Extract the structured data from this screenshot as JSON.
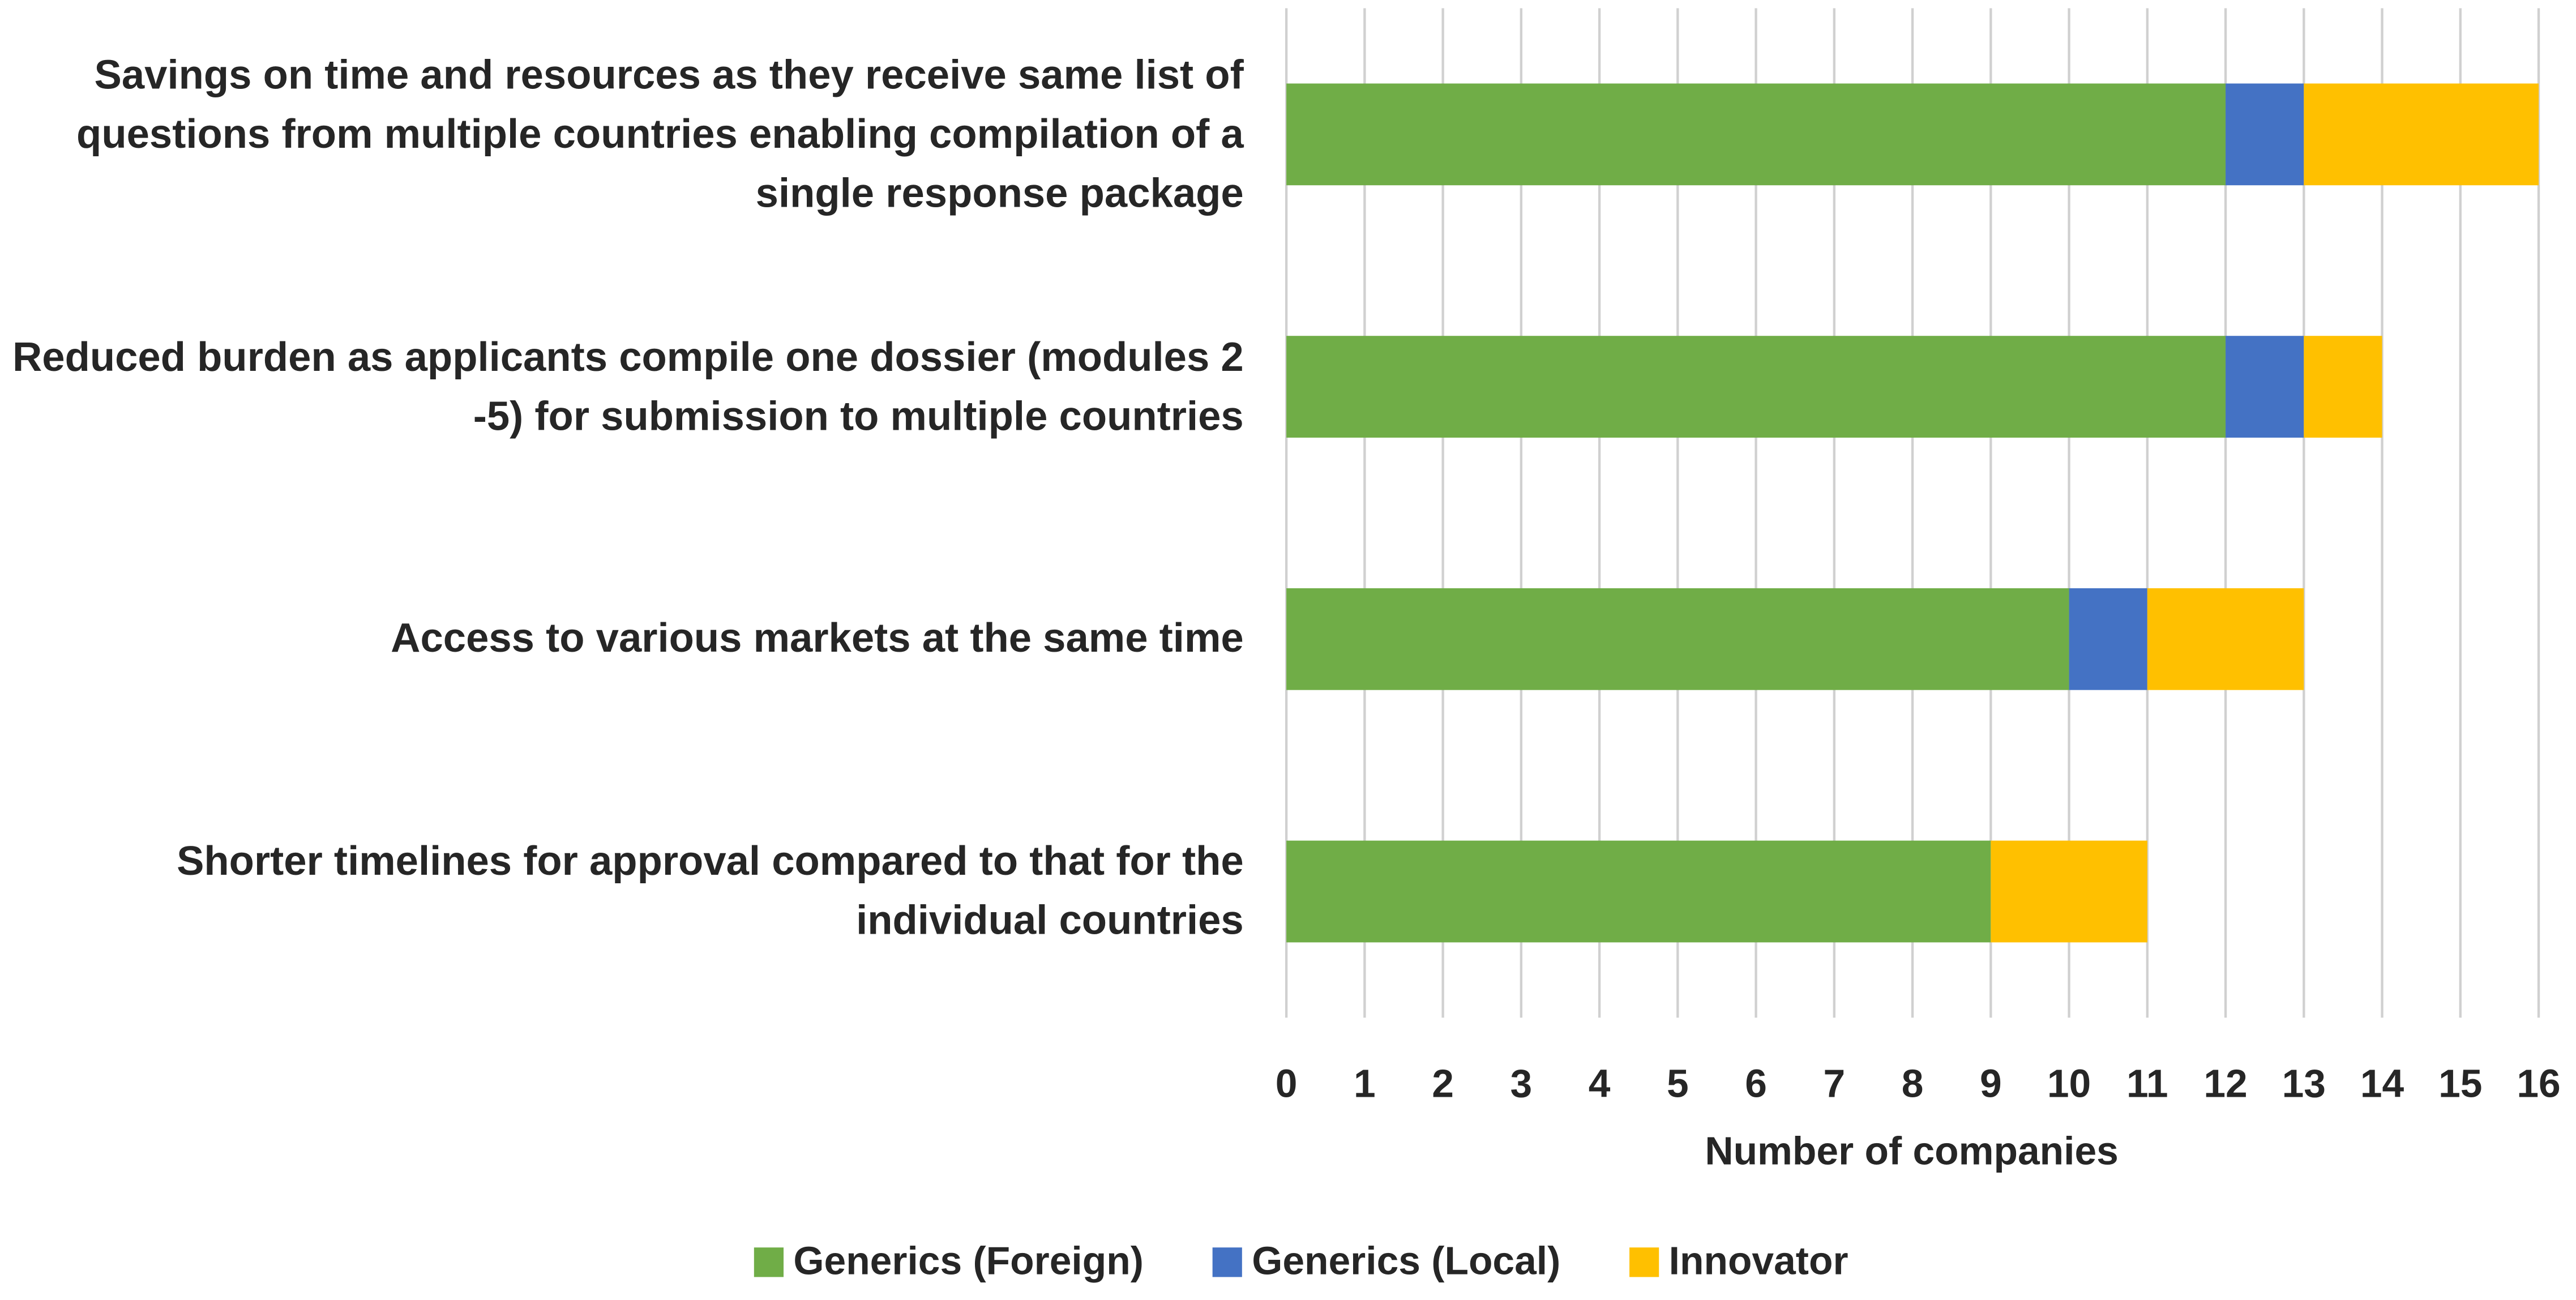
{
  "chart_data": {
    "type": "stacked-barh",
    "categories": [
      "Savings on time and resources as they receive same list of questions from multiple countries enabling compilation of a single response package",
      "Reduced burden as applicants compile one dossier (modules 2 -5) for submission to multiple countries",
      "Access to various markets at the same time",
      "Shorter timelines for approval compared to that for the individual countries"
    ],
    "series": [
      {
        "name": "Generics (Foreign)",
        "color": "#70ad47",
        "values": [
          12,
          12,
          10,
          9
        ]
      },
      {
        "name": "Generics (Local)",
        "color": "#4472c4",
        "values": [
          1,
          1,
          1,
          0
        ]
      },
      {
        "name": "Innovator",
        "color": "#ffc000",
        "values": [
          3,
          1,
          2,
          2
        ]
      }
    ],
    "xlabel": "Number of companies",
    "xlim": [
      0,
      16
    ],
    "xticks": [
      0,
      1,
      2,
      3,
      4,
      5,
      6,
      7,
      8,
      9,
      10,
      11,
      12,
      13,
      14,
      15,
      16
    ],
    "grid": true,
    "legend": "bottom"
  }
}
